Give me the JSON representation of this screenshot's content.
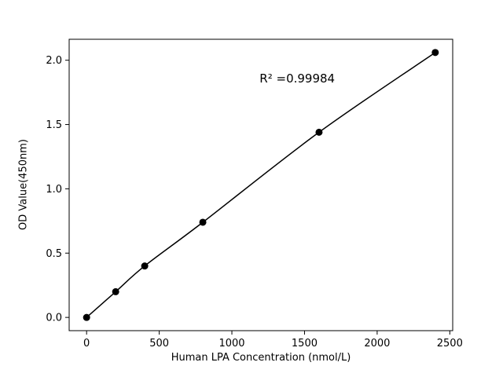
{
  "chart_data": {
    "type": "line",
    "title": "",
    "xlabel": "Human LPA Concentration (nmol/L)",
    "ylabel": "OD Value(450nm)",
    "x": [
      0,
      200,
      400,
      800,
      1600,
      2400
    ],
    "y": [
      0.0,
      0.2,
      0.4,
      0.74,
      1.44,
      2.06
    ],
    "annotation": "R² =0.99984",
    "annotation_pos": {
      "x": 1450,
      "y": 1.86
    },
    "xlim": [
      -120,
      2520
    ],
    "ylim": [
      -0.103,
      2.163
    ],
    "xticks": [
      0,
      500,
      1000,
      1500,
      2000,
      2500
    ],
    "yticks": [
      0.0,
      0.5,
      1.0,
      1.5,
      2.0
    ],
    "grid": false,
    "legend": "none",
    "marker_color": "#000000",
    "line_color": "#000000",
    "background": "#ffffff"
  }
}
